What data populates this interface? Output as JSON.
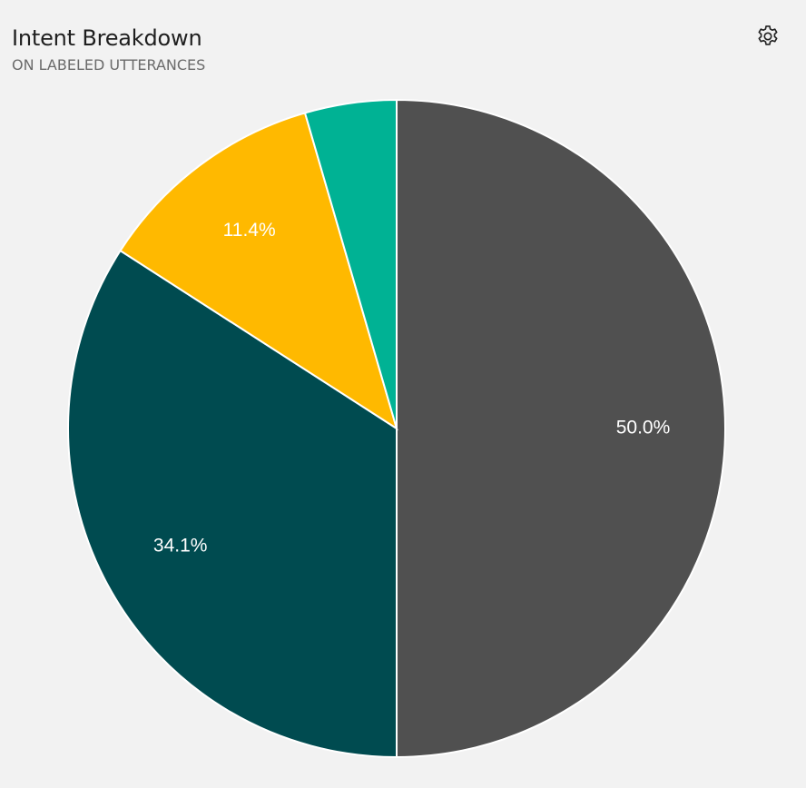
{
  "header": {
    "title": "Intent Breakdown",
    "subtitle": "ON LABELED UTTERANCES",
    "settings_icon": "gear-icon"
  },
  "chart_data": {
    "type": "pie",
    "title": "Intent Breakdown",
    "subtitle": "ON LABELED UTTERANCES",
    "slices": [
      {
        "value": 50.0,
        "label": "50.0%",
        "color": "#505050"
      },
      {
        "value": 34.1,
        "label": "34.1%",
        "color": "#004b50"
      },
      {
        "value": 11.4,
        "label": "11.4%",
        "color": "#ffb900"
      },
      {
        "value": 4.5,
        "label": "",
        "color": "#00b294"
      }
    ],
    "start_angle_deg": 0,
    "direction": "clockwise",
    "slice_border_color": "#ffffff"
  }
}
